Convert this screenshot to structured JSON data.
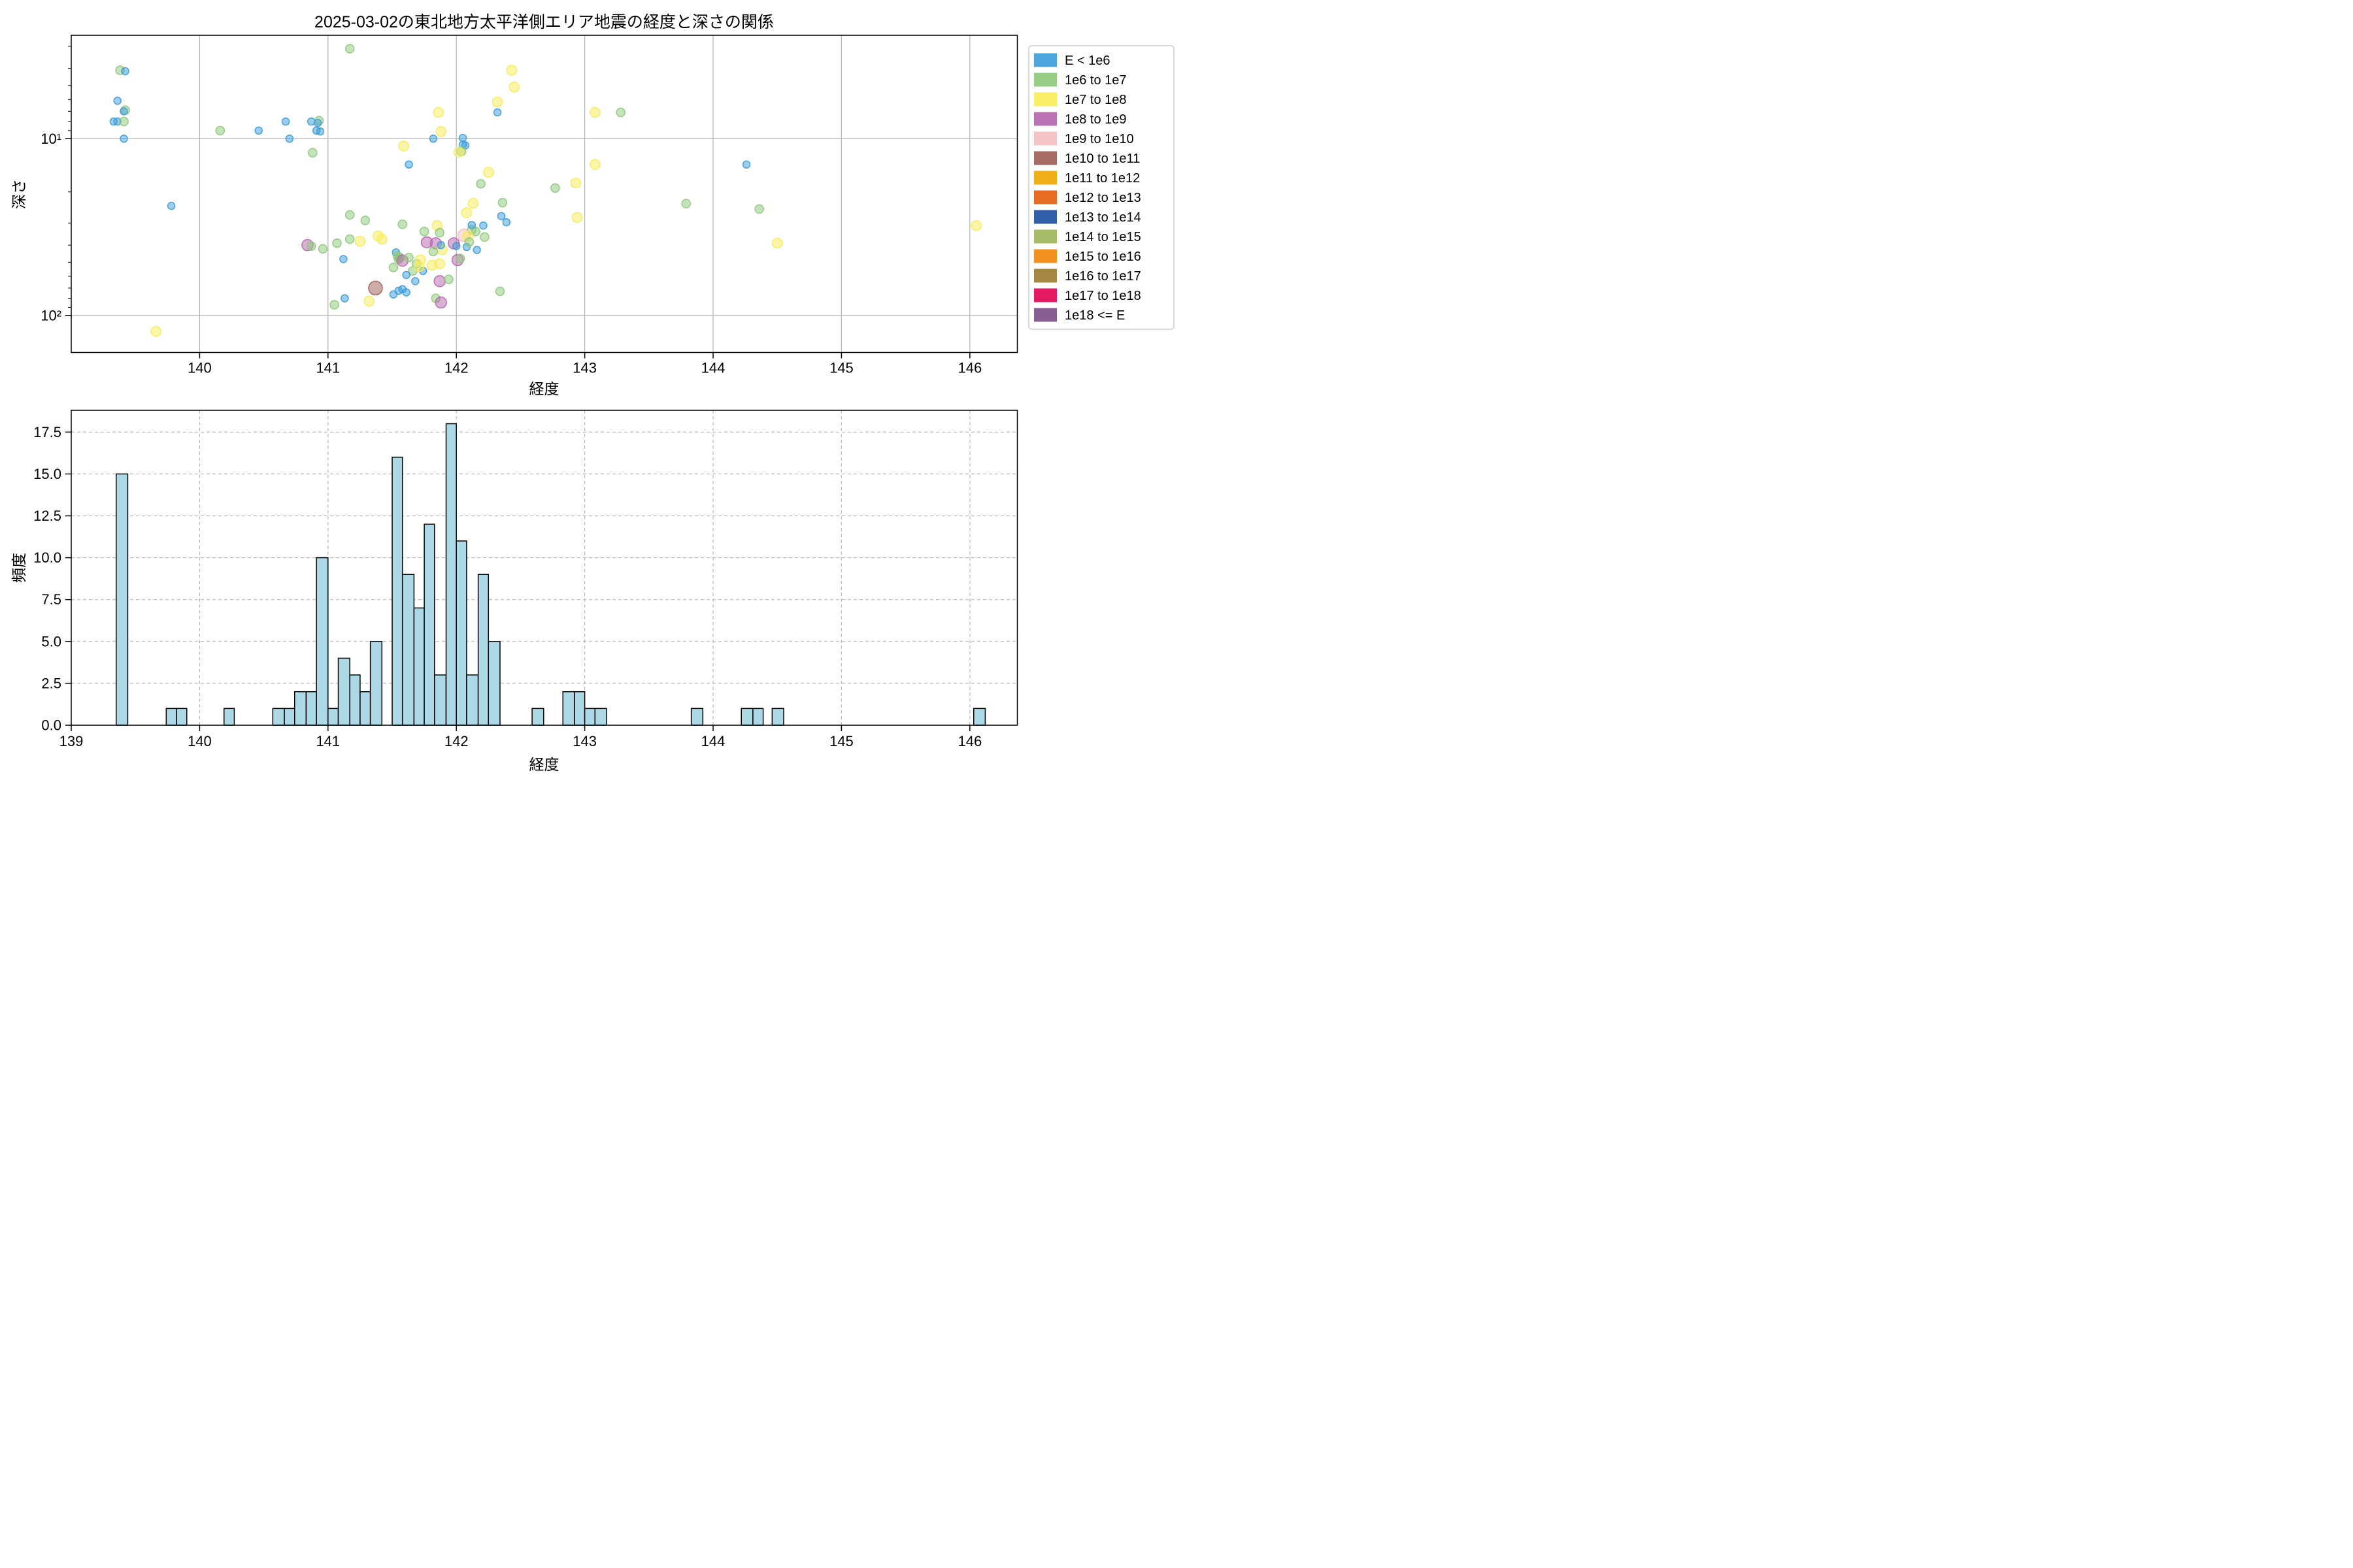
{
  "title": "2025-03-02の東北地方太平洋側エリア地震の経度と深さの関係",
  "chart_data": [
    {
      "type": "scatter",
      "xlabel": "経度",
      "ylabel": "深さ",
      "xscale": "linear",
      "yscale": "log",
      "y_inverted": true,
      "xlim": [
        139.0,
        146.37
      ],
      "depth_range": [
        2.6,
        162
      ],
      "xticks": [
        140,
        141,
        142,
        143,
        144,
        145,
        146
      ],
      "yticks": [
        {
          "value": 10,
          "label": "10¹"
        },
        {
          "value": 100,
          "label": "10²"
        }
      ],
      "yminorticks": [
        3,
        4,
        5,
        6,
        7,
        8,
        9,
        20,
        30,
        40,
        50,
        60,
        70,
        80,
        90
      ],
      "grid": {
        "style": "solid",
        "color": "#b5b5b5"
      },
      "legend": {
        "position": "outside-right",
        "entries": [
          {
            "label": "E < 1e6",
            "color": "#3A9CD9",
            "marker_radius": 11
          },
          {
            "label": "1e6 to 1e7",
            "color": "#8CC878",
            "marker_radius": 13
          },
          {
            "label": "1e7 to 1e8",
            "color": "#F7EB55",
            "marker_radius": 15
          },
          {
            "label": "1e8 to 1e9",
            "color": "#B564AC",
            "marker_radius": 17
          },
          {
            "label": "1e9 to 1e10",
            "color": "#F4BDBE",
            "marker_radius": 19
          },
          {
            "label": "1e10 to 1e11",
            "color": "#9C5B52",
            "marker_radius": 21
          },
          {
            "label": "1e11 to 1e12",
            "color": "#F0A500",
            "marker_radius": 23
          },
          {
            "label": "1e12 to 1e13",
            "color": "#E35C0A",
            "marker_radius": 25
          },
          {
            "label": "1e13 to 1e14",
            "color": "#1B4F9E",
            "marker_radius": 27
          },
          {
            "label": "1e14 to 1e15",
            "color": "#9CB457",
            "marker_radius": 29
          },
          {
            "label": "1e15 to 1e16",
            "color": "#F28405",
            "marker_radius": 31
          },
          {
            "label": "1e16 to 1e17",
            "color": "#9A7B2D",
            "marker_radius": 33
          },
          {
            "label": "1e17 to 1e18",
            "color": "#E00050",
            "marker_radius": 35
          },
          {
            "label": "1e18 <= E",
            "color": "#7C4E87",
            "marker_radius": 37
          }
        ]
      },
      "points": [
        [
          139.38,
          4.1,
          1
        ],
        [
          139.42,
          4.15,
          0
        ],
        [
          139.36,
          6.1,
          0
        ],
        [
          139.42,
          6.9,
          1
        ],
        [
          139.41,
          7.0,
          0
        ],
        [
          139.33,
          8.0,
          0
        ],
        [
          139.36,
          8.0,
          0
        ],
        [
          139.41,
          8.0,
          1
        ],
        [
          139.41,
          10.0,
          0
        ],
        [
          139.78,
          24,
          0
        ],
        [
          139.66,
          123,
          2
        ],
        [
          140.16,
          9.0,
          1
        ],
        [
          140.46,
          9.0,
          0
        ],
        [
          140.67,
          8.0,
          0
        ],
        [
          140.7,
          10.0,
          0
        ],
        [
          140.87,
          8.0,
          0
        ],
        [
          140.93,
          7.9,
          1
        ],
        [
          140.92,
          8.15,
          0
        ],
        [
          140.91,
          9.0,
          0
        ],
        [
          140.94,
          9.1,
          0
        ],
        [
          140.88,
          12.0,
          1
        ],
        [
          140.84,
          40,
          3
        ],
        [
          140.87,
          40.5,
          1
        ],
        [
          140.96,
          42,
          1
        ],
        [
          141.07,
          39,
          1
        ],
        [
          141.12,
          48,
          0
        ],
        [
          141.05,
          87,
          1
        ],
        [
          141.13,
          80,
          0
        ],
        [
          141.17,
          3.1,
          1
        ],
        [
          141.17,
          27,
          1
        ],
        [
          141.29,
          29,
          1
        ],
        [
          141.17,
          37,
          1
        ],
        [
          141.25,
          38,
          2
        ],
        [
          141.39,
          35.5,
          2
        ],
        [
          141.42,
          37,
          2
        ],
        [
          141.37,
          70,
          5
        ],
        [
          141.32,
          83,
          2
        ],
        [
          141.53,
          44,
          0
        ],
        [
          141.54,
          46,
          1
        ],
        [
          141.55,
          48,
          1
        ],
        [
          141.56,
          47,
          1
        ],
        [
          141.58,
          49,
          3
        ],
        [
          141.51,
          53.5,
          1
        ],
        [
          141.58,
          30.5,
          1
        ],
        [
          141.59,
          11,
          2
        ],
        [
          141.63,
          14,
          0
        ],
        [
          141.63,
          47,
          1
        ],
        [
          141.66,
          56,
          1
        ],
        [
          141.69,
          51,
          1
        ],
        [
          141.72,
          48.5,
          2
        ],
        [
          141.74,
          56,
          0
        ],
        [
          141.71,
          53,
          2
        ],
        [
          141.81,
          52,
          2
        ],
        [
          141.61,
          59,
          0
        ],
        [
          141.68,
          64,
          0
        ],
        [
          141.77,
          38.6,
          3
        ],
        [
          141.84,
          39.1,
          3
        ],
        [
          141.85,
          31,
          2
        ],
        [
          141.89,
          42.5,
          2
        ],
        [
          141.88,
          40,
          0
        ],
        [
          141.82,
          43.5,
          1
        ],
        [
          141.82,
          10.0,
          0
        ],
        [
          141.86,
          7.1,
          2
        ],
        [
          141.88,
          9.1,
          2
        ],
        [
          141.87,
          64,
          3
        ],
        [
          141.94,
          62.5,
          1
        ],
        [
          141.87,
          34,
          1
        ],
        [
          141.75,
          33.5,
          1
        ],
        [
          141.87,
          51,
          2
        ],
        [
          141.98,
          39.1,
          3
        ],
        [
          141.84,
          80,
          1
        ],
        [
          141.88,
          84.5,
          3
        ],
        [
          141.51,
          76,
          0
        ],
        [
          141.55,
          72.5,
          0
        ],
        [
          141.58,
          71,
          0
        ],
        [
          141.61,
          74,
          0
        ],
        [
          142.0,
          40.5,
          0
        ],
        [
          142.01,
          48.6,
          3
        ],
        [
          142.03,
          47.6,
          1
        ],
        [
          142.06,
          35.2,
          4
        ],
        [
          142.08,
          41,
          0
        ],
        [
          142.08,
          26.2,
          2
        ],
        [
          142.12,
          32.7,
          1
        ],
        [
          142.15,
          33.5,
          1
        ],
        [
          142.09,
          35.5,
          2
        ],
        [
          142.1,
          38.4,
          1
        ],
        [
          142.12,
          30.8,
          0
        ],
        [
          142.13,
          23.2,
          2
        ],
        [
          142.16,
          42.6,
          0
        ],
        [
          142.21,
          31,
          0
        ],
        [
          142.22,
          36,
          1
        ],
        [
          142.05,
          9.9,
          0
        ],
        [
          142.05,
          10.8,
          0
        ],
        [
          142.07,
          10.9,
          0
        ],
        [
          142.04,
          11.8,
          1
        ],
        [
          142.02,
          11.9,
          2
        ],
        [
          142.19,
          18,
          1
        ],
        [
          142.25,
          15.5,
          2
        ],
        [
          142.36,
          23,
          1
        ],
        [
          142.35,
          27.4,
          0
        ],
        [
          142.39,
          29.7,
          0
        ],
        [
          142.43,
          4.1,
          2
        ],
        [
          142.45,
          5.1,
          2
        ],
        [
          142.32,
          6.2,
          2
        ],
        [
          142.32,
          7.1,
          0
        ],
        [
          142.34,
          73,
          1
        ],
        [
          142.77,
          19,
          1
        ],
        [
          142.93,
          17.8,
          2
        ],
        [
          142.94,
          27.9,
          2
        ],
        [
          143.08,
          7.1,
          2
        ],
        [
          143.28,
          7.1,
          1
        ],
        [
          143.08,
          14,
          2
        ],
        [
          143.79,
          23.3,
          1
        ],
        [
          144.26,
          14,
          0
        ],
        [
          144.36,
          25,
          1
        ],
        [
          144.5,
          39,
          2
        ],
        [
          146.05,
          31,
          2
        ]
      ]
    },
    {
      "type": "bar",
      "xlabel": "経度",
      "ylabel": "頻度",
      "xlim": [
        139.0,
        146.37
      ],
      "ylim": [
        0,
        18.8
      ],
      "xticks": [
        139,
        140,
        141,
        142,
        143,
        144,
        145,
        146
      ],
      "yticks": [
        0,
        2.5,
        5.0,
        7.5,
        10.0,
        12.5,
        15.0,
        17.5
      ],
      "grid": {
        "style": "dashed",
        "color": "#bbbbbb"
      },
      "bar_color": "#ADD8E6",
      "bar_edge_color": "#000000",
      "bars": [
        [
          139.35,
          139.44,
          15
        ],
        [
          139.74,
          139.82,
          1
        ],
        [
          139.82,
          139.9,
          1
        ],
        [
          140.19,
          140.27,
          1
        ],
        [
          140.57,
          140.66,
          1
        ],
        [
          140.66,
          140.74,
          1
        ],
        [
          140.74,
          140.83,
          2
        ],
        [
          140.83,
          140.91,
          2
        ],
        [
          140.91,
          141.0,
          10
        ],
        [
          141.0,
          141.08,
          1
        ],
        [
          141.08,
          141.17,
          4
        ],
        [
          141.17,
          141.25,
          3
        ],
        [
          141.25,
          141.33,
          2
        ],
        [
          141.33,
          141.42,
          5
        ],
        [
          141.5,
          141.58,
          16
        ],
        [
          141.58,
          141.67,
          9
        ],
        [
          141.67,
          141.75,
          7
        ],
        [
          141.75,
          141.83,
          12
        ],
        [
          141.83,
          141.92,
          3
        ],
        [
          141.92,
          142.0,
          18
        ],
        [
          142.0,
          142.08,
          11
        ],
        [
          142.08,
          142.17,
          3
        ],
        [
          142.17,
          142.25,
          9
        ],
        [
          142.25,
          142.34,
          5
        ],
        [
          142.59,
          142.68,
          1
        ],
        [
          142.83,
          142.92,
          2
        ],
        [
          142.92,
          143.0,
          2
        ],
        [
          143.0,
          143.08,
          1
        ],
        [
          143.08,
          143.17,
          1
        ],
        [
          143.83,
          143.92,
          1
        ],
        [
          144.22,
          144.31,
          1
        ],
        [
          144.31,
          144.39,
          1
        ],
        [
          144.46,
          144.55,
          1
        ],
        [
          146.03,
          146.12,
          1
        ]
      ]
    }
  ]
}
